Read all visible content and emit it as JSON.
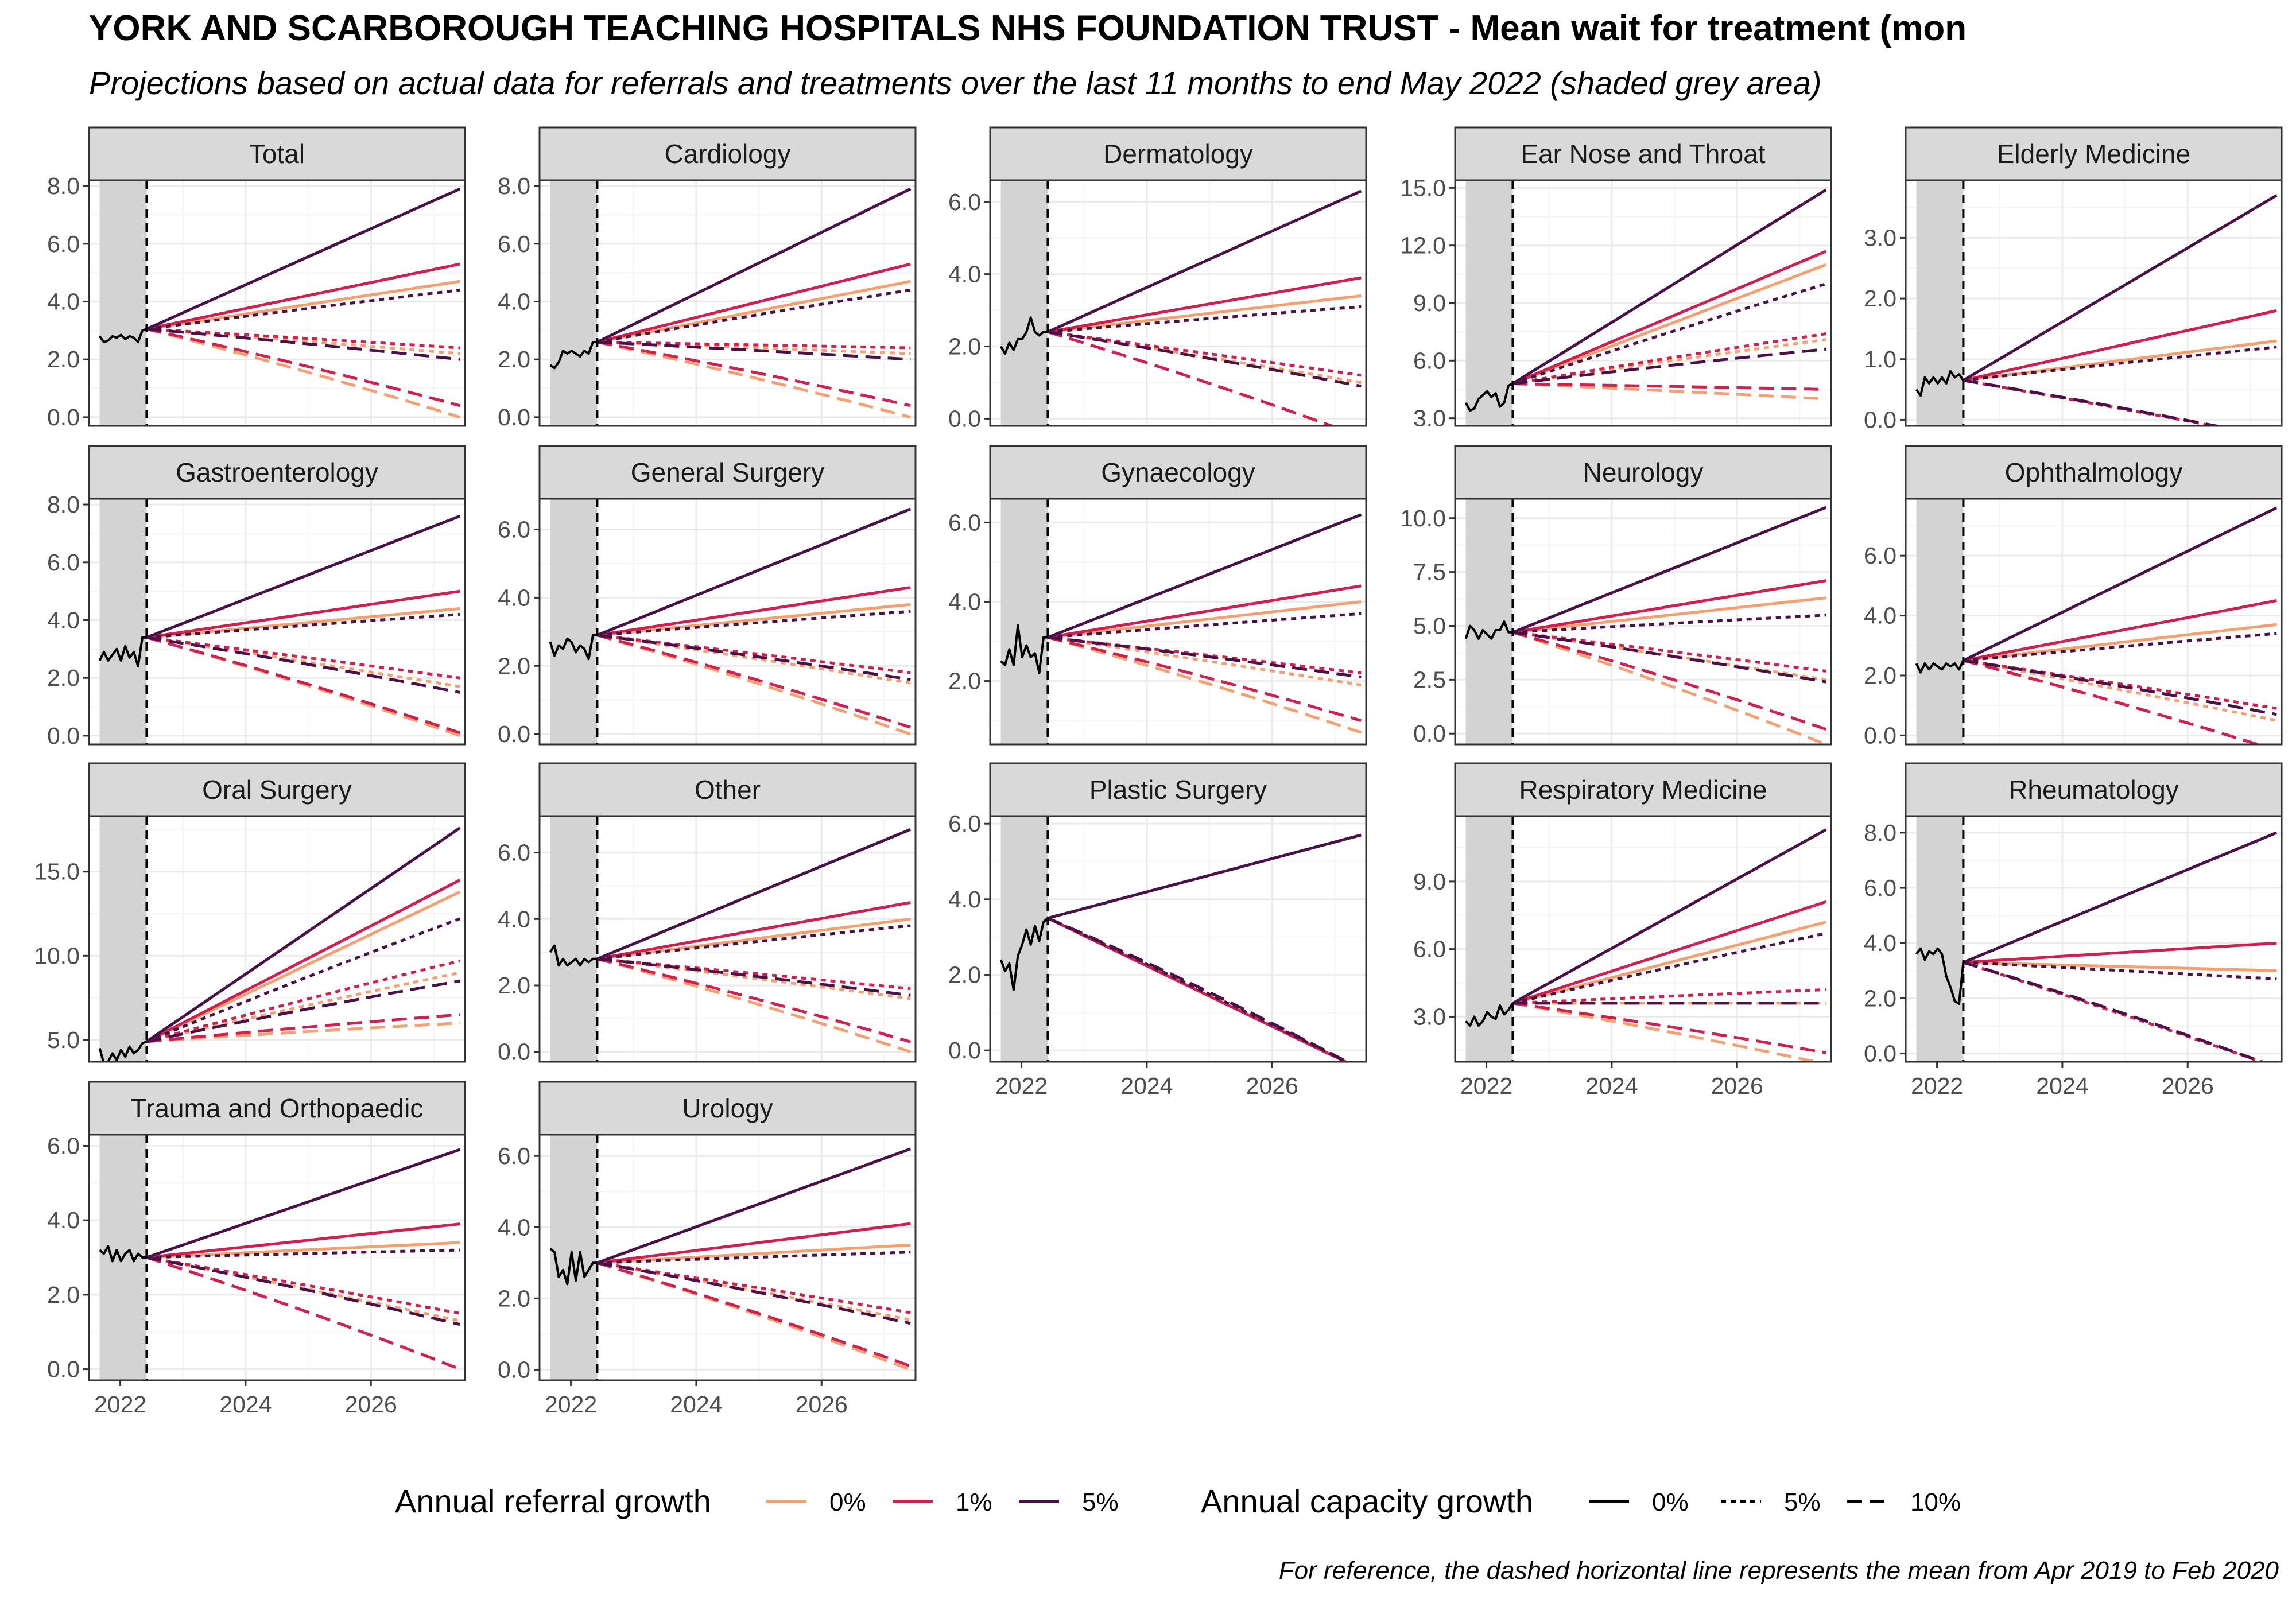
{
  "title": "YORK AND SCARBOROUGH TEACHING HOSPITALS NHS FOUNDATION TRUST - Mean wait for treatment (mon",
  "subtitle": "Projections based on actual data for referrals and treatments over the last 11 months to end May 2022 (shaded grey area)",
  "caption": "For reference, the dashed horizontal line represents the mean from Apr 2019 to Feb 2020",
  "colors": {
    "background": "#ffffff",
    "strip": "#d9d9d9",
    "grid_major": "#ebebeb",
    "grid_minor": "#f5f5f5",
    "shade": "#d3d3d3",
    "actual": "#000000",
    "ref_0": "#f4a070",
    "ref_1": "#d11f4f",
    "ref_5": "#4a1149"
  },
  "chart_data": {
    "type": "line",
    "layout": "small-multiples",
    "x_ticks": [
      2022,
      2024,
      2026
    ],
    "x_range": [
      2021.5,
      2027.5
    ],
    "shaded_period": [
      2021.67,
      2022.42
    ],
    "projection_start": 2022.42,
    "projection_end": 2027.42,
    "legend": {
      "position": "bottom",
      "referral_title": "Annual referral growth",
      "referral_items": [
        {
          "label": "0%",
          "color": "#f4a070"
        },
        {
          "label": "1%",
          "color": "#d11f4f"
        },
        {
          "label": "5%",
          "color": "#4a1149"
        }
      ],
      "capacity_title": "Annual capacity growth",
      "capacity_items": [
        {
          "label": "0%",
          "linetype": "solid"
        },
        {
          "label": "5%",
          "linetype": "dotted"
        },
        {
          "label": "10%",
          "linetype": "dashed"
        }
      ]
    },
    "panels": [
      {
        "name": "Total",
        "ylim": [
          -0.3,
          8.2
        ],
        "yticks": [
          0,
          2,
          4,
          6,
          8
        ],
        "ytick_labels": [
          "0.0",
          "2.0",
          "4.0",
          "6.0",
          "8.0"
        ],
        "actual": [
          2.8,
          2.6,
          2.65,
          2.8,
          2.75,
          2.85,
          2.7,
          2.8,
          2.75,
          2.6,
          3.0,
          3.05
        ],
        "end": {
          "r0c0": 4.7,
          "r1c0": 5.3,
          "r5c0": 7.9,
          "r0c5": 2.2,
          "r1c5": 2.4,
          "r5c5": 4.4,
          "r0c10": 0.0,
          "r1c10": 0.4,
          "r5c10": 2.0
        }
      },
      {
        "name": "Cardiology",
        "ylim": [
          -0.3,
          8.2
        ],
        "yticks": [
          0,
          2,
          4,
          6,
          8
        ],
        "ytick_labels": [
          "0.0",
          "2.0",
          "4.0",
          "6.0",
          "8.0"
        ],
        "actual": [
          1.8,
          1.7,
          1.9,
          2.3,
          2.2,
          2.3,
          2.2,
          2.1,
          2.3,
          2.2,
          2.6,
          2.6
        ],
        "end": {
          "r0c0": 4.7,
          "r1c0": 5.3,
          "r5c0": 7.9,
          "r0c5": 2.2,
          "r1c5": 2.4,
          "r5c5": 4.4,
          "r0c10": 0.0,
          "r1c10": 0.4,
          "r5c10": 2.0
        }
      },
      {
        "name": "Dermatology",
        "ylim": [
          -0.2,
          6.6
        ],
        "yticks": [
          0,
          2,
          4,
          6
        ],
        "ytick_labels": [
          "0.0",
          "2.0",
          "4.0",
          "6.0"
        ],
        "actual": [
          2.0,
          1.8,
          2.1,
          1.9,
          2.2,
          2.2,
          2.4,
          2.8,
          2.4,
          2.3,
          2.4,
          2.4
        ],
        "end": {
          "r0c0": 3.4,
          "r1c0": 3.9,
          "r5c0": 6.3,
          "r0c5": 1.0,
          "r1c5": 1.2,
          "r5c5": 3.1,
          "r0c10": -0.5,
          "r1c10": -0.5,
          "r5c10": 0.9
        }
      },
      {
        "name": "Ear Nose and Throat",
        "ylim": [
          2.6,
          15.4
        ],
        "yticks": [
          3,
          6,
          9,
          12,
          15
        ],
        "ytick_labels": [
          "3.0",
          "6.0",
          "9.0",
          "12.0",
          "15.0"
        ],
        "actual": [
          3.8,
          3.4,
          3.5,
          4.0,
          4.2,
          4.4,
          4.1,
          4.3,
          3.6,
          3.8,
          4.7,
          4.8
        ],
        "end": {
          "r0c0": 11.0,
          "r1c0": 11.7,
          "r5c0": 14.9,
          "r0c5": 7.1,
          "r1c5": 7.4,
          "r5c5": 10.0,
          "r0c10": 4.0,
          "r1c10": 4.5,
          "r5c10": 6.6
        }
      },
      {
        "name": "Elderly Medicine",
        "ylim": [
          -0.1,
          3.95
        ],
        "yticks": [
          0,
          1,
          2,
          3
        ],
        "ytick_labels": [
          "0.0",
          "1.0",
          "2.0",
          "3.0"
        ],
        "actual": [
          0.5,
          0.4,
          0.7,
          0.6,
          0.7,
          0.6,
          0.7,
          0.6,
          0.8,
          0.7,
          0.75,
          0.65
        ],
        "end": {
          "r0c0": 1.3,
          "r1c0": 1.8,
          "r5c0": 3.7,
          "r0c5": -0.3,
          "r1c5": -0.3,
          "r5c5": 1.2,
          "r0c10": -0.3,
          "r1c10": -0.3,
          "r5c10": -0.3
        }
      },
      {
        "name": "Gastroenterology",
        "ylim": [
          -0.3,
          8.2
        ],
        "yticks": [
          0,
          2,
          4,
          6,
          8
        ],
        "ytick_labels": [
          "0.0",
          "2.0",
          "4.0",
          "6.0",
          "8.0"
        ],
        "actual": [
          2.6,
          2.9,
          2.6,
          2.8,
          3.0,
          2.6,
          3.1,
          2.7,
          2.9,
          2.4,
          3.4,
          3.4
        ],
        "end": {
          "r0c0": 4.4,
          "r1c0": 5.0,
          "r5c0": 7.6,
          "r0c5": 1.7,
          "r1c5": 2.0,
          "r5c5": 4.2,
          "r0c10": 0.0,
          "r1c10": 0.1,
          "r5c10": 1.5
        }
      },
      {
        "name": "General Surgery",
        "ylim": [
          -0.3,
          6.9
        ],
        "yticks": [
          0,
          2,
          4,
          6
        ],
        "ytick_labels": [
          "0.0",
          "2.0",
          "4.0",
          "6.0"
        ],
        "actual": [
          2.7,
          2.3,
          2.6,
          2.5,
          2.8,
          2.7,
          2.4,
          2.6,
          2.5,
          2.2,
          2.9,
          2.9
        ],
        "end": {
          "r0c0": 3.8,
          "r1c0": 4.3,
          "r5c0": 6.6,
          "r0c5": 1.5,
          "r1c5": 1.8,
          "r5c5": 3.6,
          "r0c10": 0.0,
          "r1c10": 0.2,
          "r5c10": 1.6
        }
      },
      {
        "name": "Gynaecology",
        "ylim": [
          0.4,
          6.6
        ],
        "yticks": [
          2,
          4,
          6
        ],
        "ytick_labels": [
          "2.0",
          "4.0",
          "6.0"
        ],
        "actual": [
          2.5,
          2.4,
          2.8,
          2.4,
          3.4,
          2.6,
          2.9,
          2.6,
          2.7,
          2.2,
          3.1,
          3.1
        ],
        "end": {
          "r0c0": 4.0,
          "r1c0": 4.4,
          "r5c0": 6.2,
          "r0c5": 1.9,
          "r1c5": 2.2,
          "r5c5": 3.7,
          "r0c10": 0.7,
          "r1c10": 1.0,
          "r5c10": 2.1
        }
      },
      {
        "name": "Neurology",
        "ylim": [
          -0.5,
          10.9
        ],
        "yticks": [
          0,
          2.5,
          5,
          7.5,
          10
        ],
        "ytick_labels": [
          "0.0",
          "2.5",
          "5.0",
          "7.5",
          "10.0"
        ],
        "actual": [
          4.4,
          5.0,
          4.8,
          4.4,
          4.8,
          4.6,
          4.4,
          4.8,
          4.8,
          5.2,
          4.7,
          4.7
        ],
        "end": {
          "r0c0": 6.3,
          "r1c0": 7.1,
          "r5c0": 10.5,
          "r0c5": 2.5,
          "r1c5": 2.9,
          "r5c5": 5.5,
          "r0c10": -0.5,
          "r1c10": 0.2,
          "r5c10": 2.4
        }
      },
      {
        "name": "Ophthalmology",
        "ylim": [
          -0.3,
          7.9
        ],
        "yticks": [
          0,
          2,
          4,
          6
        ],
        "ytick_labels": [
          "0.0",
          "2.0",
          "4.0",
          "6.0"
        ],
        "actual": [
          2.4,
          2.1,
          2.4,
          2.2,
          2.4,
          2.3,
          2.2,
          2.4,
          2.3,
          2.4,
          2.2,
          2.5
        ],
        "end": {
          "r0c0": 3.7,
          "r1c0": 4.5,
          "r5c0": 7.6,
          "r0c5": 0.5,
          "r1c5": 0.9,
          "r5c5": 3.4,
          "r0c10": -0.5,
          "r1c10": -0.5,
          "r5c10": 0.7
        }
      },
      {
        "name": "Oral Surgery",
        "ylim": [
          3.7,
          18.3
        ],
        "yticks": [
          5,
          10,
          15
        ],
        "ytick_labels": [
          "5.0",
          "10.0",
          "15.0"
        ],
        "actual": [
          4.5,
          3.6,
          3.7,
          4.2,
          3.8,
          4.4,
          4.0,
          4.6,
          4.2,
          4.4,
          4.8,
          4.9
        ],
        "end": {
          "r0c0": 13.8,
          "r1c0": 14.5,
          "r5c0": 17.6,
          "r0c5": 9.0,
          "r1c5": 9.7,
          "r5c5": 12.2,
          "r0c10": 6.0,
          "r1c10": 6.5,
          "r5c10": 8.5
        }
      },
      {
        "name": "Other",
        "ylim": [
          -0.3,
          7.1
        ],
        "yticks": [
          0,
          2,
          4,
          6
        ],
        "ytick_labels": [
          "0.0",
          "2.0",
          "4.0",
          "6.0"
        ],
        "actual": [
          3.0,
          3.2,
          2.6,
          2.8,
          2.6,
          2.7,
          2.8,
          2.6,
          2.8,
          2.7,
          2.8,
          2.8
        ],
        "end": {
          "r0c0": 4.0,
          "r1c0": 4.5,
          "r5c0": 6.7,
          "r0c5": 1.6,
          "r1c5": 1.9,
          "r5c5": 3.8,
          "r0c10": 0.0,
          "r1c10": 0.3,
          "r5c10": 1.7
        }
      },
      {
        "name": "Plastic Surgery",
        "ylim": [
          -0.3,
          6.2
        ],
        "yticks": [
          0,
          2,
          4,
          6
        ],
        "ytick_labels": [
          "0.0",
          "2.0",
          "4.0",
          "6.0"
        ],
        "actual": [
          2.4,
          2.1,
          2.3,
          1.6,
          2.5,
          2.8,
          3.2,
          2.8,
          3.3,
          2.9,
          3.4,
          3.5
        ],
        "end": {
          "r0c0": -0.5,
          "r1c0": -0.5,
          "r5c0": 5.7,
          "r0c5": -0.5,
          "r1c5": -0.5,
          "r5c5": -0.5,
          "r0c10": -0.5,
          "r1c10": -0.5,
          "r5c10": -0.5
        }
      },
      {
        "name": "Respiratory Medicine",
        "ylim": [
          1.0,
          11.9
        ],
        "yticks": [
          3,
          6,
          9
        ],
        "ytick_labels": [
          "3.0",
          "6.0",
          "9.0"
        ],
        "actual": [
          2.8,
          2.6,
          3.0,
          2.6,
          2.8,
          3.2,
          3.0,
          2.9,
          3.5,
          3.1,
          3.3,
          3.6
        ],
        "end": {
          "r0c0": 7.2,
          "r1c0": 8.1,
          "r5c0": 11.3,
          "r0c5": 3.6,
          "r1c5": 4.2,
          "r5c5": 6.7,
          "r0c10": 0.9,
          "r1c10": 1.4,
          "r5c10": 3.6
        }
      },
      {
        "name": "Rheumatology",
        "ylim": [
          -0.3,
          8.6
        ],
        "yticks": [
          0,
          2,
          4,
          6,
          8
        ],
        "ytick_labels": [
          "0.0",
          "2.0",
          "4.0",
          "6.0",
          "8.0"
        ],
        "actual": [
          3.6,
          3.8,
          3.4,
          3.7,
          3.6,
          3.8,
          3.6,
          2.8,
          2.4,
          1.9,
          1.8,
          3.3
        ],
        "end": {
          "r0c0": 3.0,
          "r1c0": 4.0,
          "r5c0": 8.0,
          "r0c5": -0.5,
          "r1c5": -0.5,
          "r5c5": 2.7,
          "r0c10": -0.5,
          "r1c10": -0.5,
          "r5c10": -0.5
        }
      },
      {
        "name": "Trauma and Orthopaedic",
        "ylim": [
          -0.3,
          6.3
        ],
        "yticks": [
          0,
          2,
          4,
          6
        ],
        "ytick_labels": [
          "0.0",
          "2.0",
          "4.0",
          "6.0"
        ],
        "actual": [
          3.2,
          3.1,
          3.3,
          2.9,
          3.2,
          2.9,
          3.1,
          3.2,
          2.9,
          3.1,
          3.0,
          3.0
        ],
        "end": {
          "r0c0": 3.4,
          "r1c0": 3.9,
          "r5c0": 5.9,
          "r0c5": 1.3,
          "r1c5": 1.5,
          "r5c5": 3.2,
          "r0c10": 0.0,
          "r1c10": 0.0,
          "r5c10": 1.2
        }
      },
      {
        "name": "Urology",
        "ylim": [
          -0.3,
          6.6
        ],
        "yticks": [
          0,
          2,
          4,
          6
        ],
        "ytick_labels": [
          "0.0",
          "2.0",
          "4.0",
          "6.0"
        ],
        "actual": [
          3.4,
          3.3,
          2.6,
          2.8,
          2.4,
          3.3,
          2.5,
          3.3,
          2.6,
          2.8,
          3.0,
          3.0
        ],
        "end": {
          "r0c0": 3.5,
          "r1c0": 4.1,
          "r5c0": 6.2,
          "r0c5": 1.4,
          "r1c5": 1.6,
          "r5c5": 3.3,
          "r0c10": 0.0,
          "r1c10": 0.1,
          "r5c10": 1.3
        }
      }
    ]
  }
}
